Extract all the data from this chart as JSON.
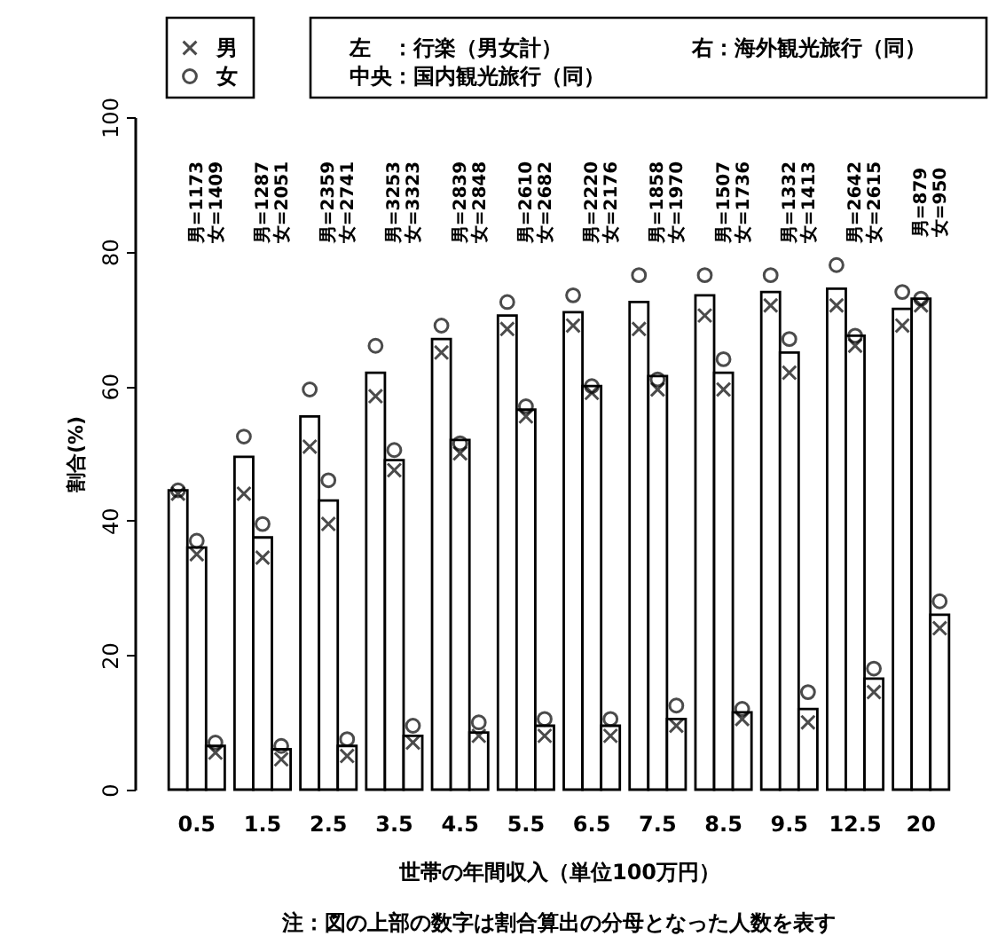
{
  "chart_data": {
    "type": "bar",
    "xlabel": "世帯の年間収入（単位100万円）",
    "ylabel": "割合(%)",
    "categories": [
      "0.5",
      "1.5",
      "2.5",
      "3.5",
      "4.5",
      "5.5",
      "6.5",
      "7.5",
      "8.5",
      "9.5",
      "12.5",
      "20"
    ],
    "ylim": [
      0,
      100
    ],
    "yticks": [
      0,
      20,
      40,
      60,
      80,
      100
    ],
    "grid": false,
    "legend": "top",
    "series": [
      {
        "color": "#ffffff",
        "values": [
          44.5,
          49.5,
          55.5,
          62,
          67,
          70.5,
          71,
          72.5,
          73.5,
          74,
          74.5,
          71.5
        ]
      },
      {
        "color": "#ffffff",
        "values": [
          36,
          37.5,
          43,
          49,
          52,
          56.5,
          60,
          61.5,
          62,
          65,
          67.5,
          73
        ]
      },
      {
        "color": "#ffffff",
        "values": [
          6.5,
          6,
          6.5,
          8,
          8.5,
          9.5,
          9.5,
          10.5,
          11.5,
          12,
          16.5,
          26
        ]
      },
      {
        "name": "男",
        "type": "scatter",
        "marker": "cross",
        "color": "#000000",
        "values": [
          44,
          44,
          51,
          58.5,
          65,
          68.5,
          69,
          68.5,
          70.5,
          72,
          72,
          69
        ]
      },
      {
        "name": "女",
        "type": "scatter",
        "marker": "circle",
        "color": "#000000",
        "values": [
          44.5,
          52.5,
          59.5,
          66,
          69,
          72.5,
          73.5,
          76.5,
          76.5,
          76.5,
          78,
          74
        ]
      },
      {
        "type": "scatter",
        "marker": "cross",
        "color": "#000000",
        "values": [
          35,
          34.5,
          39.5,
          47.5,
          50,
          55.5,
          59,
          59.5,
          59.5,
          62,
          66,
          72
        ]
      },
      {
        "type": "scatter",
        "marker": "circle",
        "color": "#000000",
        "values": [
          37,
          39.5,
          46,
          50.5,
          51.5,
          57,
          60,
          61,
          64,
          67,
          67.5,
          73
        ]
      },
      {
        "type": "scatter",
        "marker": "cross",
        "color": "#000000",
        "values": [
          5.5,
          4.5,
          5,
          7,
          8,
          8,
          8,
          9.5,
          10.5,
          10,
          14.5,
          24
        ]
      },
      {
        "type": "scatter",
        "marker": "circle",
        "color": "#000000",
        "values": [
          7,
          6.5,
          7.5,
          9.5,
          10,
          10.5,
          10.5,
          12.5,
          12,
          14.5,
          18,
          28
        ]
      }
    ],
    "annotations": [
      "男=1173\n女=1409",
      "男=1287\n女=2051",
      "男=2359\n女=2741",
      "男=3253\n女=3323",
      "男=2839\n女=2848",
      "男=2610\n女=2682",
      "男=2220\n女=2176",
      "男=1858\n女=1970",
      "男=1507\n女=1736",
      "男=1332\n女=1413",
      "男=2642\n女=2615",
      "男=879\n女=950",
      "左　：行楽（男女計）",
      "中央：国内観光旅行（同）",
      "右：海外観光旅行（同）",
      "注：図の上部の数字は割合算出の分母となった人数を表す"
    ]
  }
}
